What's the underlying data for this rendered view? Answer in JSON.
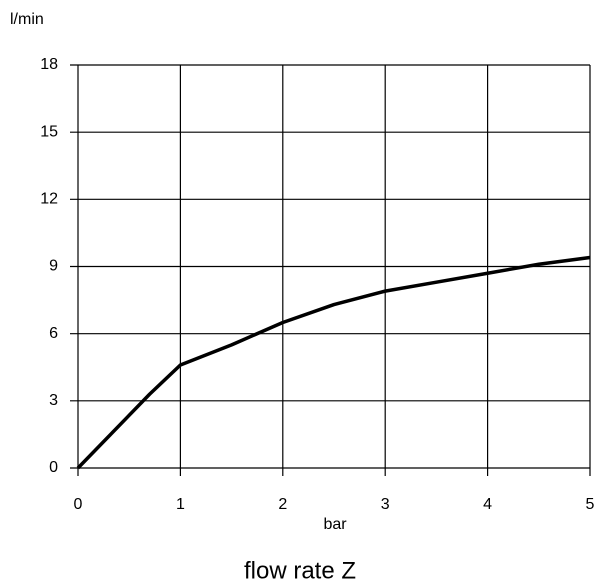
{
  "chart_data": {
    "type": "line",
    "title": "flow rate Z",
    "x_label": "bar",
    "y_label": "l/min",
    "x": [
      0,
      0.7,
      1,
      1.5,
      2,
      2.5,
      3,
      3.5,
      4,
      4.5,
      5
    ],
    "series": [
      {
        "name": "flow rate Z",
        "color": "#000000",
        "values": [
          0,
          3.3,
          4.6,
          5.5,
          6.5,
          7.3,
          7.9,
          8.3,
          8.7,
          9.1,
          9.4
        ]
      }
    ],
    "xlim": [
      0,
      5
    ],
    "xticks": [
      0,
      1,
      2,
      3,
      4,
      5
    ],
    "ylim": [
      0,
      18
    ],
    "yticks": [
      0,
      3,
      6,
      9,
      12,
      15,
      18
    ],
    "grid": true
  }
}
